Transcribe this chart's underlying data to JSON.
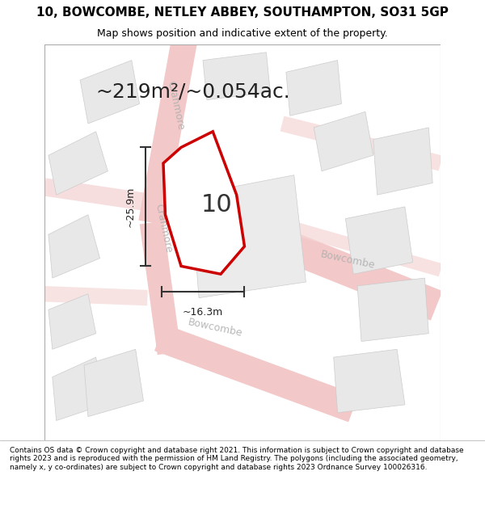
{
  "title": "10, BOWCOMBE, NETLEY ABBEY, SOUTHAMPTON, SO31 5GP",
  "subtitle": "Map shows position and indicative extent of the property.",
  "footer": "Contains OS data © Crown copyright and database right 2021. This information is subject to Crown copyright and database rights 2023 and is reproduced with the permission of HM Land Registry. The polygons (including the associated geometry, namely x, y co-ordinates) are subject to Crown copyright and database rights 2023 Ordnance Survey 100026316.",
  "area_text": "~219m²/~0.054ac.",
  "label_number": "10",
  "dim_height": "~25.9m",
  "dim_width": "~16.3m",
  "bg_color": "#f5f5f5",
  "road_color_main": "#f2c8c8",
  "road_color_light": "#f5d5d5",
  "building_fill": "#e8e8e8",
  "building_edge": "#cccccc",
  "plot_fill": "#ffffff",
  "plot_edge": "#cc0000",
  "plot_edge_width": 2.5,
  "street_label_color": "#b0b0b0",
  "dim_line_color": "#333333",
  "title_fontsize": 11,
  "subtitle_fontsize": 9,
  "area_fontsize": 18,
  "label_fontsize": 22,
  "footer_fontsize": 6.5,
  "street_fontsize": 9,
  "dim_fontsize": 9
}
